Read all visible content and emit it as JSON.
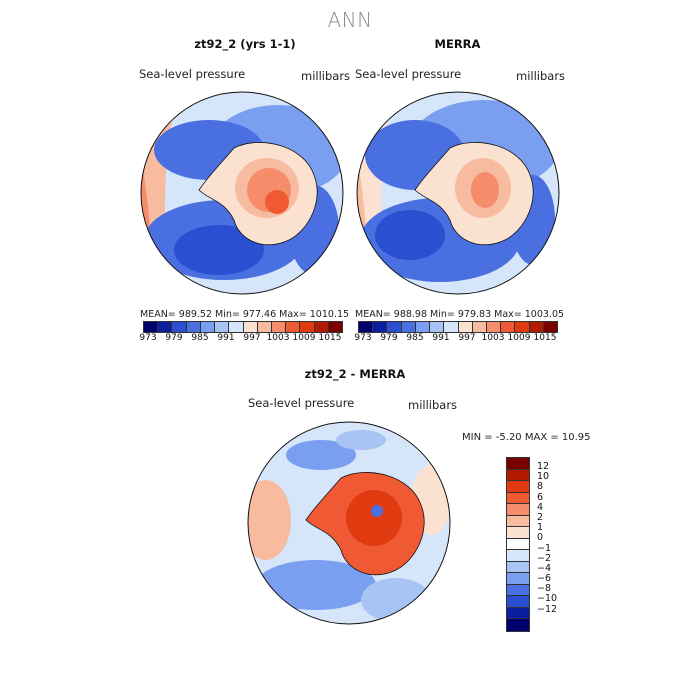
{
  "figure": {
    "title": "ANN",
    "colors": {
      "abs_scale": [
        "#00006e",
        "#0a1fa0",
        "#2a4fd0",
        "#4a6fe0",
        "#7a9ff0",
        "#a8c4f5",
        "#d6e6fa",
        "#fbe2d0",
        "#f7bba0",
        "#f58c6a",
        "#ef5a35",
        "#e03a10",
        "#b41a00",
        "#7a0000"
      ],
      "diff_scale": [
        "#7a0000",
        "#b41a00",
        "#e03a10",
        "#ef5a35",
        "#f58c6a",
        "#f7bba0",
        "#fbe2d0",
        "#ffffff",
        "#d6e6fa",
        "#a8c4f5",
        "#7a9ff0",
        "#4a6fe0",
        "#2a4fd0",
        "#0a1fa0",
        "#00006e"
      ]
    }
  },
  "chart_data": [
    {
      "type": "heatmap",
      "title": "zt92_2 (yrs 1-1)",
      "variable": "Sea-level pressure",
      "units": "millibars",
      "stats_text": "MEAN= 989.52   Min= 977.46   Max= 1010.15",
      "colorbar_ticks": [
        "973",
        "979",
        "985",
        "991",
        "997",
        "1003",
        "1009",
        "1015"
      ]
    },
    {
      "type": "heatmap",
      "title": "MERRA",
      "variable": "Sea-level pressure",
      "units": "millibars",
      "stats_text": "MEAN= 988.98   Min= 979.83   Max= 1003.05",
      "colorbar_ticks": [
        "973",
        "979",
        "985",
        "991",
        "997",
        "1003",
        "1009",
        "1015"
      ]
    },
    {
      "type": "heatmap",
      "title": "zt92_2 - MERRA",
      "variable": "Sea-level pressure",
      "units": "millibars",
      "stats_text": "MIN =   -5.20  MAX =   10.95",
      "colorbar_ticks": [
        "12",
        "10",
        "8",
        "6",
        "4",
        "2",
        "1",
        "0",
        "−1",
        "−2",
        "−4",
        "−6",
        "−8",
        "−10",
        "−12"
      ]
    }
  ]
}
